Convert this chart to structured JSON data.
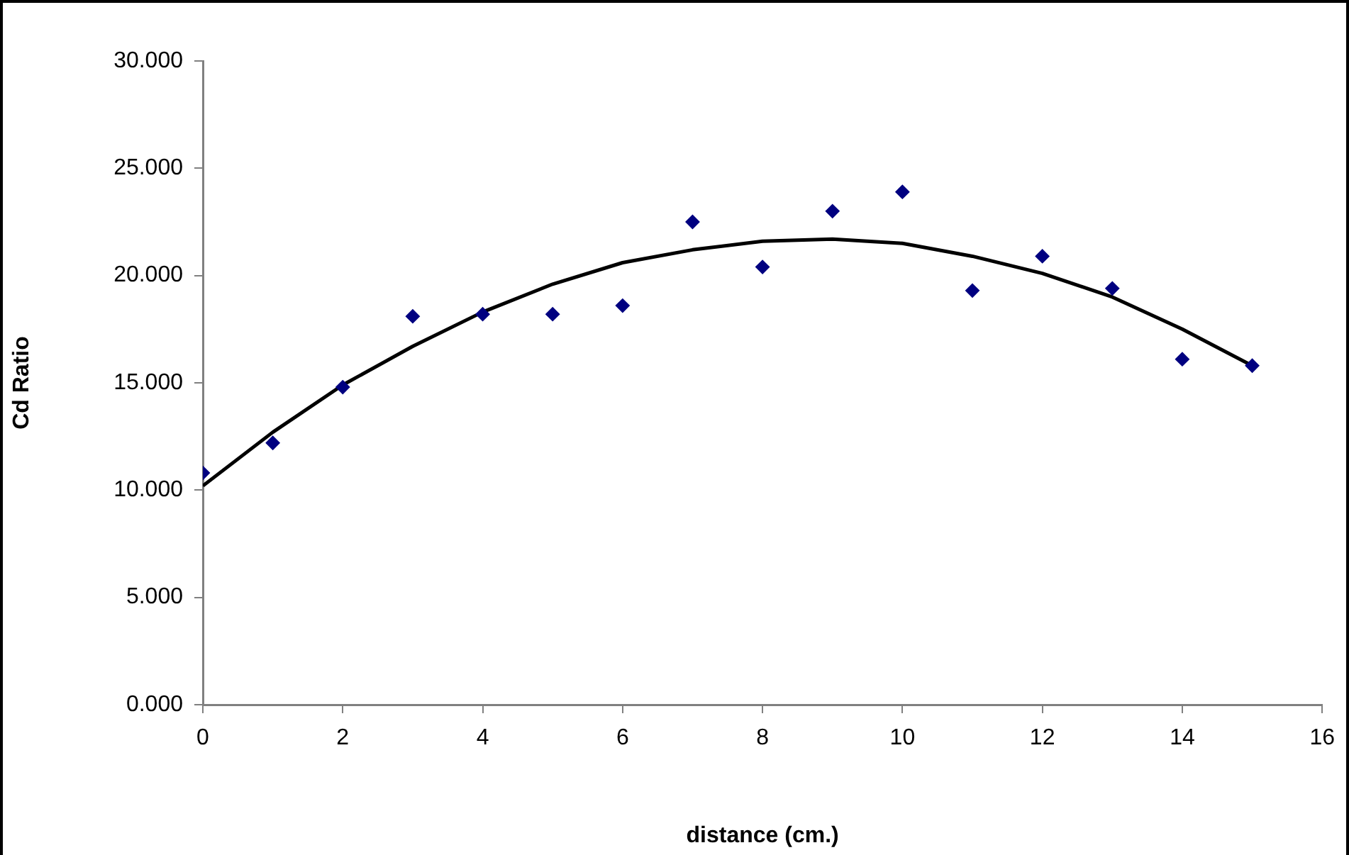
{
  "chart_data": {
    "type": "scatter",
    "xlabel": "distance (cm.)",
    "ylabel": "Cd Ratio",
    "xlim": [
      0,
      16
    ],
    "xticks": [
      0,
      2,
      4,
      6,
      8,
      10,
      12,
      14,
      16
    ],
    "ylim": [
      0,
      30
    ],
    "yticks": [
      {
        "value": 0,
        "label": "0.000"
      },
      {
        "value": 5,
        "label": "5.000"
      },
      {
        "value": 10,
        "label": "10.000"
      },
      {
        "value": 15,
        "label": "15.000"
      },
      {
        "value": 20,
        "label": "20.000"
      },
      {
        "value": 25,
        "label": "25.000"
      },
      {
        "value": 30,
        "label": "30.000"
      }
    ],
    "grid": false,
    "legend": false,
    "series": [
      {
        "type": "scatter",
        "color": "#000080",
        "marker": "diamond",
        "x": [
          0,
          1,
          2,
          3,
          4,
          5,
          6,
          7,
          8,
          9,
          10,
          11,
          12,
          13,
          14,
          15
        ],
        "values": [
          10.8,
          12.2,
          14.8,
          18.1,
          18.2,
          18.2,
          18.6,
          22.5,
          20.4,
          23.0,
          23.9,
          19.3,
          20.9,
          19.4,
          16.1,
          15.8
        ]
      },
      {
        "type": "line",
        "color": "#000000",
        "marker": "none",
        "line_style": "solid",
        "x": [
          0,
          1,
          2,
          3,
          4,
          5,
          6,
          7,
          8,
          9,
          10,
          11,
          12,
          13,
          14,
          15
        ],
        "values": [
          10.2,
          12.7,
          14.9,
          16.7,
          18.3,
          19.6,
          20.6,
          21.2,
          21.6,
          21.7,
          21.5,
          20.9,
          20.1,
          19.0,
          17.5,
          15.8
        ]
      }
    ]
  }
}
